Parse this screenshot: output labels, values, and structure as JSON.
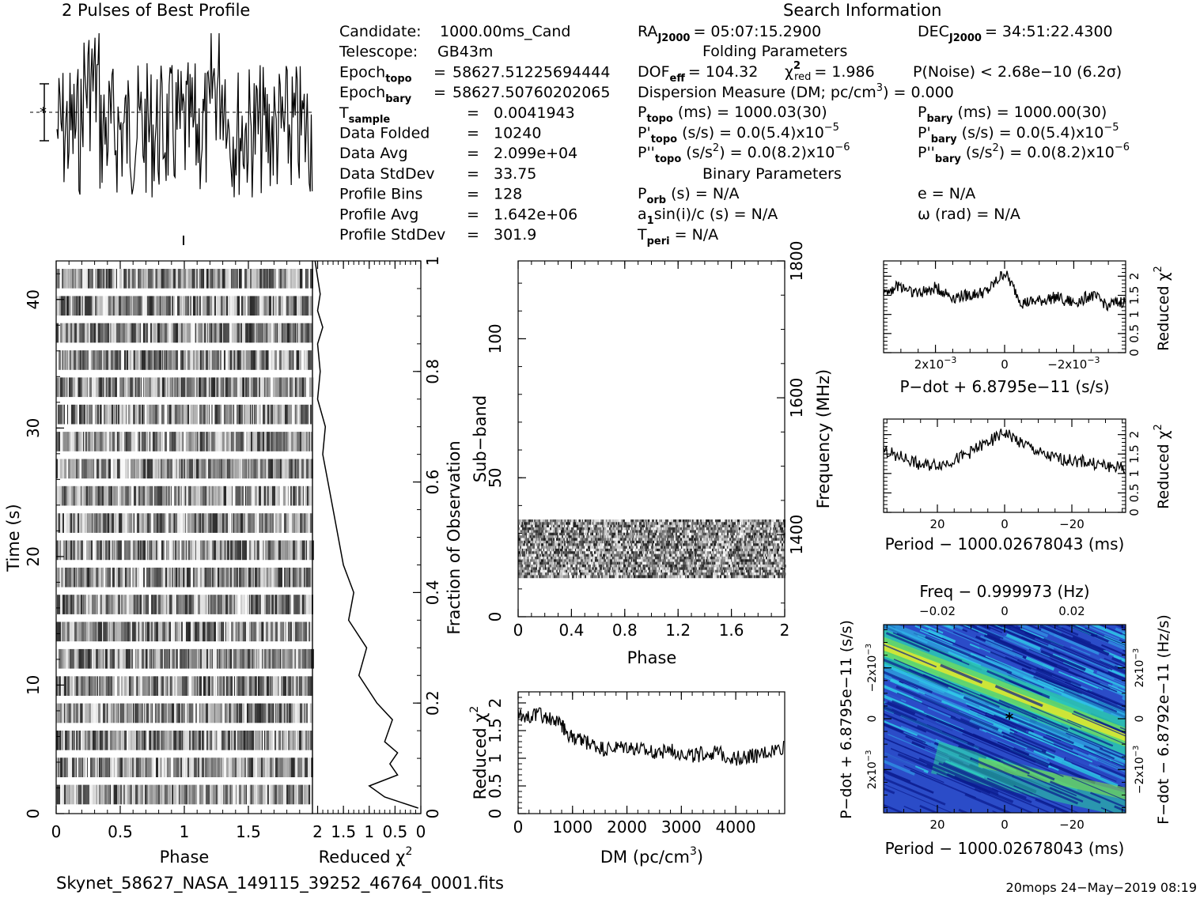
{
  "titles": {
    "profile": "2 Pulses of Best Profile",
    "search": "Search Information",
    "folding": "Folding Parameters",
    "binary": "Binary Parameters"
  },
  "info_left": [
    {
      "name": "Candidate:",
      "sub": "",
      "eq": "",
      "value": "1000.00ms_Cand"
    },
    {
      "name": "Telescope:",
      "sub": "",
      "eq": "",
      "value": "GB43m"
    },
    {
      "name": "Epoch",
      "sub": "topo",
      "eq": "=",
      "value": "58627.51225694444"
    },
    {
      "name": "Epoch",
      "sub": "bary",
      "eq": "=",
      "value": "58627.50760202065"
    },
    {
      "name": "T",
      "sub": "sample",
      "eq": "=",
      "value": "0.0041943"
    },
    {
      "name": "Data Folded",
      "sub": "",
      "eq": "=",
      "value": "10240"
    },
    {
      "name": "Data Avg",
      "sub": "",
      "eq": "=",
      "value": "2.099e+04"
    },
    {
      "name": "Data StdDev",
      "sub": "",
      "eq": "=",
      "value": "33.75"
    },
    {
      "name": "Profile Bins",
      "sub": "",
      "eq": "=",
      "value": "128"
    },
    {
      "name": "Profile Avg",
      "sub": "",
      "eq": "=",
      "value": "1.642e+06"
    },
    {
      "name": "Profile StdDev",
      "sub": "",
      "eq": "=",
      "value": "301.9"
    }
  ],
  "search": {
    "ra": "RA",
    "ra_sub": "J2000",
    "ra_value": "= 05:07:15.2900",
    "dec": "DEC",
    "dec_sub": "J2000",
    "dec_value": "= 34:51:22.4300",
    "dof": "DOF",
    "dof_sub": "eff",
    "dof_value": "= 104.32",
    "chi": "χ",
    "chi_sup": "2",
    "chi_sub": "red",
    "chi_value": "= 1.986",
    "pnoise": "P(Noise) < 2.68e−10   (6.2σ)",
    "dm_line": "Dispersion Measure (DM; pc/cm",
    "dm_sup": "3",
    "dm_end": ") = 0.000",
    "ptopo": "P",
    "ptopo_sub": "topo",
    "ptopo_value": "(ms) =  1000.03(30)",
    "pbary": "P",
    "pbary_sub": "bary",
    "pbary_value": "(ms) =  1000.00(30)",
    "pdtopo": "P'",
    "pdtopo_sub": "topo",
    "pdtopo_value": "(s/s) = 0.0(5.4)x10",
    "pdtopo_exp": "−5",
    "pdbary": "P'",
    "pdbary_sub": "bary",
    "pdbary_value": "(s/s) = 0.0(5.4)x10",
    "pdbary_exp": "−5",
    "pddtopo": "P''",
    "pddtopo_sub": "topo",
    "pddtopo_value": "(s/s",
    "pddtopo_value2": ") = 0.0(8.2)x10",
    "pddtopo_exp": "−6",
    "s2": "2",
    "pddbary": "P''",
    "pddbary_sub": "bary",
    "pddbary_value": "(s/s",
    "pddbary_value2": ") = 0.0(8.2)x10",
    "pddbary_exp": "−6",
    "porb": "P",
    "porb_sub": "orb",
    "porb_value": "(s) = N/A",
    "e_line": "e = N/A",
    "a1": "a",
    "a1_sub": "1",
    "a1_value": "sin(i)/c (s) = N/A",
    "omega_line": "ω (rad) = N/A",
    "tperi": "T",
    "tperi_sub": "peri",
    "tperi_value": "= N/A"
  },
  "footer": {
    "filename": "Skynet_58627_NASA_149115_39252_46764_0001.fits",
    "stamp": "20mops 24−May−2019 08:19"
  },
  "chart_data": [
    {
      "id": "profile",
      "type": "line",
      "title": "2 Pulses of Best Profile",
      "x_range": [
        0,
        2
      ],
      "description_free": true,
      "n_points": 256
    },
    {
      "id": "time_phase",
      "type": "heatmap",
      "xlabel": "Phase",
      "ylabel": "Time (s)",
      "x_ticks": [
        "0",
        "0.5",
        "1",
        "1.5"
      ],
      "y_ticks": [
        "0",
        "10",
        "20",
        "30",
        "40"
      ],
      "xlim": [
        0,
        2
      ],
      "ylim": [
        0,
        43
      ],
      "rows": 20
    },
    {
      "id": "time_chi",
      "type": "line",
      "xlabel": "Reduced χ",
      "xlabel_sup": "2",
      "ylabel_right": "Fraction of Observation",
      "x_ticks": [
        "2",
        "1.5",
        "1",
        "0.5",
        "0"
      ],
      "y_ticks": [
        "0",
        "0.2",
        "0.4",
        "0.6",
        "0.8",
        "1"
      ],
      "xlim": [
        2.1,
        0
      ],
      "ylim": [
        0,
        1
      ],
      "x": [
        0.05,
        0.7,
        1.0,
        0.45,
        0.6,
        0.45,
        0.7,
        0.55,
        0.85,
        1.2,
        1.05,
        1.4,
        1.3,
        1.5,
        1.6,
        1.7,
        1.8,
        1.9,
        1.85,
        2.0,
        1.95,
        2.0,
        1.9,
        2.0,
        1.95,
        2.0,
        2.05
      ],
      "y": [
        0.01,
        0.03,
        0.05,
        0.07,
        0.09,
        0.11,
        0.13,
        0.17,
        0.2,
        0.25,
        0.3,
        0.35,
        0.4,
        0.45,
        0.5,
        0.55,
        0.6,
        0.65,
        0.7,
        0.75,
        0.8,
        0.85,
        0.88,
        0.91,
        0.94,
        0.97,
        1.0
      ]
    },
    {
      "id": "subband",
      "type": "heatmap",
      "xlabel": "Phase",
      "ylabel": "Sub−band",
      "ylabel_right": "Frequency (MHz)",
      "x_ticks": [
        "0",
        "0.4",
        "0.8",
        "1.2",
        "1.6",
        "2"
      ],
      "y_ticks": [
        "0",
        "50",
        "100"
      ],
      "y_right_ticks": [
        "1400",
        "1600",
        "1800"
      ],
      "xlim": [
        0,
        2
      ],
      "ylim": [
        0,
        128
      ],
      "filled_band": [
        14,
        35
      ]
    },
    {
      "id": "dm",
      "type": "line",
      "xlabel": "DM (pc/cm",
      "xlabel_sup": "3",
      "xlabel_end": ")",
      "ylabel": "Reduced χ",
      "ylabel_sup": "2",
      "x_ticks": [
        "0",
        "1000",
        "2000",
        "3000",
        "4000"
      ],
      "y_ticks": [
        "0",
        "0.5",
        "1",
        "1.5",
        "2"
      ],
      "xlim": [
        0,
        4900
      ],
      "ylim": [
        0,
        2.2
      ],
      "x": [
        0,
        400,
        800,
        1000,
        1200,
        1600,
        2000,
        2400,
        2800,
        3200,
        3600,
        4000,
        4400,
        4900
      ],
      "y": [
        1.75,
        1.8,
        1.6,
        1.35,
        1.3,
        1.15,
        1.2,
        1.1,
        1.15,
        1.05,
        1.1,
        1.0,
        1.05,
        1.2
      ]
    },
    {
      "id": "pdot",
      "type": "line",
      "xlabel": "P−dot + 6.8795e−11 (s/s)",
      "ylabel_right": "Reduced χ",
      "ylabel_right_sup": "2",
      "x_ticks": [
        "2x10",
        "0",
        "−2x10"
      ],
      "x_tick_exp": "−3",
      "y_ticks": [
        "0",
        "0.5",
        "1",
        "1.5",
        "2"
      ],
      "xlim": [
        0.0035,
        -0.0035
      ],
      "ylim": [
        0,
        2.4
      ],
      "x": [
        0.0035,
        0.003,
        0.0025,
        0.002,
        0.0015,
        0.001,
        0.0005,
        0,
        -0.0005,
        -0.001,
        -0.0015,
        -0.002,
        -0.0025,
        -0.003,
        -0.0035
      ],
      "y": [
        1.6,
        1.75,
        1.55,
        1.7,
        1.45,
        1.5,
        1.6,
        2.1,
        1.3,
        1.35,
        1.45,
        1.3,
        1.5,
        1.25,
        1.35
      ]
    },
    {
      "id": "period",
      "type": "line",
      "xlabel": "Period − 1000.02678043 (ms)",
      "ylabel_right": "Reduced χ",
      "ylabel_right_sup": "2",
      "x_ticks": [
        "20",
        "0",
        "−20"
      ],
      "y_ticks": [
        "0",
        "0.5",
        "1",
        "1.5",
        "2"
      ],
      "xlim": [
        36,
        -36
      ],
      "ylim": [
        0,
        2.4
      ],
      "x": [
        36,
        30,
        24,
        18,
        12,
        6,
        0,
        -6,
        -12,
        -18,
        -24,
        -30,
        -36
      ],
      "y": [
        1.6,
        1.4,
        1.2,
        1.25,
        1.45,
        1.75,
        2.05,
        1.75,
        1.45,
        1.35,
        1.3,
        1.2,
        1.15
      ]
    },
    {
      "id": "ppdot",
      "type": "heatmap",
      "title": "Freq − 0.999973 (Hz)",
      "xlabel": "Period − 1000.02678043 (ms)",
      "ylabel": "P−dot + 6.8795e−11 (s/s)",
      "ylabel_right": "F−dot − 6.8792e−11 (Hz/s)",
      "x_ticks": [
        "20",
        "0",
        "−20"
      ],
      "top_ticks": [
        "−0.02",
        "0",
        "0.02"
      ],
      "y_ticks": [
        "2x10",
        "0",
        "−2x10"
      ],
      "y_right_ticks": [
        "−2x10",
        "0",
        "2x10"
      ],
      "tick_exp": "−3",
      "colors": [
        "#0a1a8c",
        "#2b4cc8",
        "#2f8ce0",
        "#2fc8e8",
        "#29d49b",
        "#7ee04a",
        "#e8e82a"
      ]
    }
  ]
}
